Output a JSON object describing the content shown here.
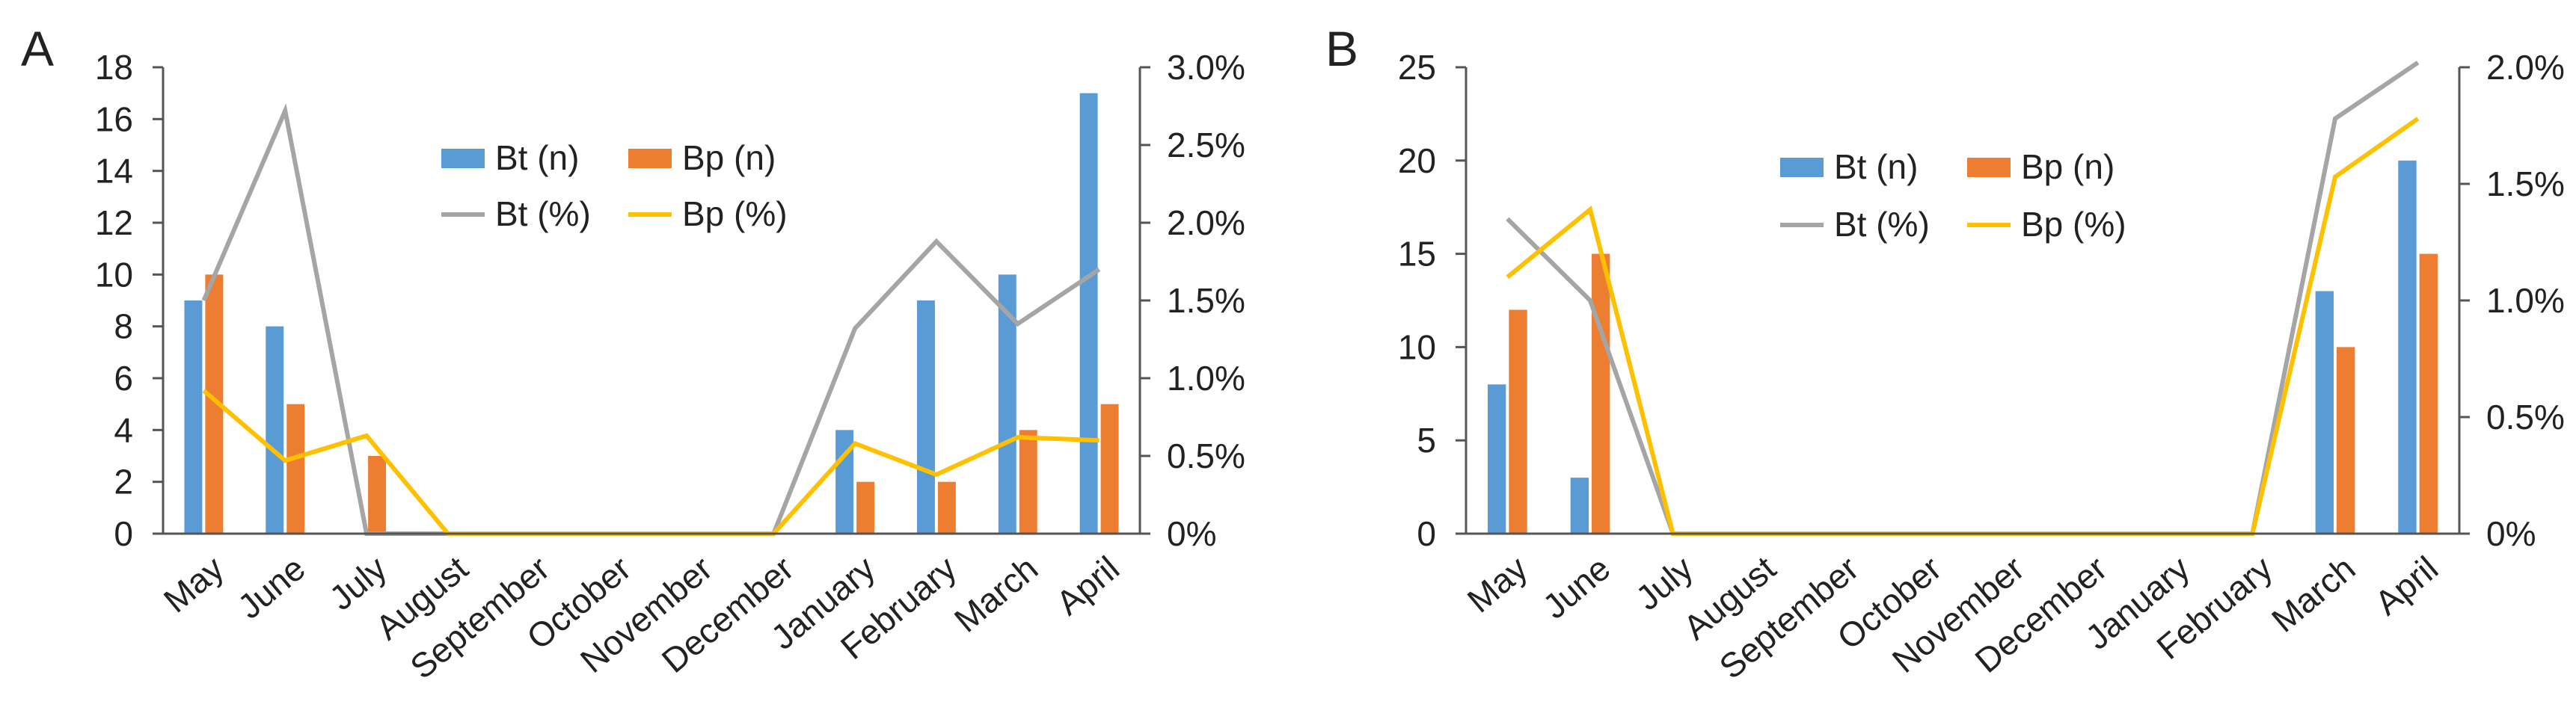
{
  "colors": {
    "bt_bar": "#5b9bd5",
    "bp_bar": "#ed7d31",
    "bt_line": "#a5a5a5",
    "bp_line": "#ffc000"
  },
  "chart_data": [
    {
      "panel": "A",
      "type": "bar+line",
      "categories": [
        "May",
        "June",
        "July",
        "August",
        "September",
        "October",
        "November",
        "December",
        "January",
        "February",
        "March",
        "April"
      ],
      "y_left": {
        "ylim": [
          0,
          18
        ],
        "ticks": [
          "0",
          "2",
          "4",
          "6",
          "8",
          "10",
          "12",
          "14",
          "16",
          "18"
        ]
      },
      "y_right": {
        "ylim": [
          0,
          3.0
        ],
        "ticks": [
          "0%",
          "0.5%",
          "1.0%",
          "1.5%",
          "2.0%",
          "2.5%",
          "3.0%"
        ]
      },
      "series": [
        {
          "name": "Bt (n)",
          "kind": "bar",
          "axis": "left",
          "values": [
            9,
            8,
            0,
            0,
            0,
            0,
            0,
            0,
            4,
            9,
            10,
            17
          ]
        },
        {
          "name": "Bp (n)",
          "kind": "bar",
          "axis": "left",
          "values": [
            10,
            5,
            3,
            0,
            0,
            0,
            0,
            0,
            2,
            2,
            4,
            5
          ]
        },
        {
          "name": "Bt (%)",
          "kind": "line",
          "axis": "right",
          "values": [
            1.5,
            2.72,
            0.0,
            0.0,
            0.0,
            0.0,
            0.0,
            0.0,
            1.32,
            1.88,
            1.35,
            1.7
          ]
        },
        {
          "name": "Bp (%)",
          "kind": "line",
          "axis": "right",
          "values": [
            0.92,
            0.47,
            0.63,
            0.0,
            0.0,
            0.0,
            0.0,
            0.0,
            0.58,
            0.38,
            0.62,
            0.6
          ]
        }
      ],
      "legend": [
        "Bt (n)",
        "Bp (n)",
        "Bt (%)",
        "Bp (%)"
      ]
    },
    {
      "panel": "B",
      "type": "bar+line",
      "categories": [
        "May",
        "June",
        "July",
        "August",
        "September",
        "October",
        "November",
        "December",
        "January",
        "February",
        "March",
        "April"
      ],
      "y_left": {
        "ylim": [
          0,
          25
        ],
        "ticks": [
          "0",
          "5",
          "10",
          "15",
          "20",
          "25"
        ]
      },
      "y_right": {
        "ylim": [
          0,
          2.0
        ],
        "ticks": [
          "0%",
          "0.5%",
          "1.0%",
          "1.5%",
          "2.0%"
        ]
      },
      "series": [
        {
          "name": "Bt (n)",
          "kind": "bar",
          "axis": "left",
          "values": [
            8,
            3,
            0,
            0,
            0,
            0,
            0,
            0,
            0,
            0,
            13,
            20
          ]
        },
        {
          "name": "Bp (n)",
          "kind": "bar",
          "axis": "left",
          "values": [
            12,
            15,
            0,
            0,
            0,
            0,
            0,
            0,
            0,
            0,
            10,
            15
          ]
        },
        {
          "name": "Bt (%)",
          "kind": "line",
          "axis": "right",
          "values": [
            1.35,
            1.0,
            0.0,
            0.0,
            0.0,
            0.0,
            0.0,
            0.0,
            0.0,
            0.0,
            1.78,
            2.02
          ]
        },
        {
          "name": "Bp (%)",
          "kind": "line",
          "axis": "right",
          "values": [
            1.1,
            1.39,
            0.0,
            0.0,
            0.0,
            0.0,
            0.0,
            0.0,
            0.0,
            0.0,
            1.53,
            1.78
          ]
        }
      ],
      "legend": [
        "Bt (n)",
        "Bp (n)",
        "Bt (%)",
        "Bp (%)"
      ]
    }
  ]
}
